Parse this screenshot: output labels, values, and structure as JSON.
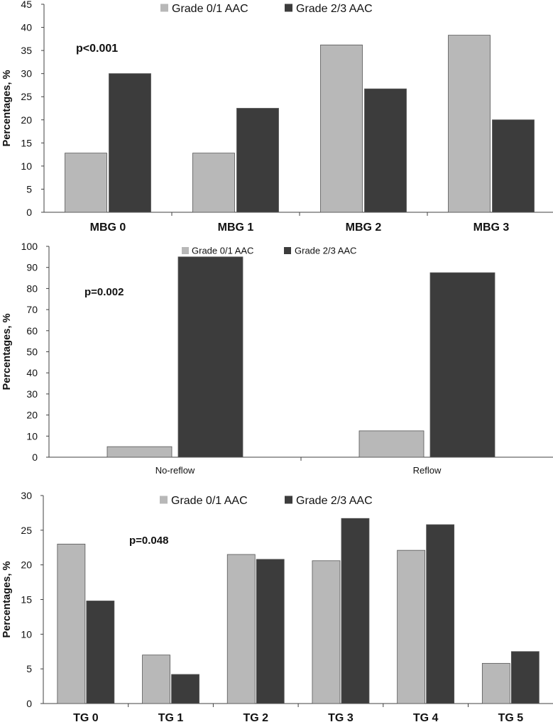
{
  "colors": {
    "series_light": "#b8b8b8",
    "series_dark": "#3c3c3c",
    "axis": "#404040",
    "text": "#111111"
  },
  "chart_data": [
    {
      "type": "bar",
      "title": "",
      "xlabel": "",
      "ylabel": "Percentages, %",
      "ylim": [
        0,
        45
      ],
      "yticks": [
        0,
        5,
        10,
        15,
        20,
        25,
        30,
        35,
        40,
        45
      ],
      "categories": [
        "MBG 0",
        "MBG 1",
        "MBG 2",
        "MBG 3"
      ],
      "series": [
        {
          "name": "Grade 0/1 AAC",
          "values": [
            12.8,
            12.8,
            36.2,
            38.3
          ]
        },
        {
          "name": "Grade 2/3 AAC",
          "values": [
            30.0,
            22.5,
            26.7,
            20.0
          ]
        }
      ],
      "annotation": "p<0.001",
      "legend": "top-center",
      "grid": false
    },
    {
      "type": "bar",
      "title": "",
      "xlabel": "",
      "ylabel": "Percentages, %",
      "ylim": [
        0,
        100
      ],
      "yticks": [
        0,
        10,
        20,
        30,
        40,
        50,
        60,
        70,
        80,
        90,
        100
      ],
      "categories": [
        "No-reflow",
        "Reflow"
      ],
      "series": [
        {
          "name": "Grade 0/1 AAC",
          "values": [
            5.0,
            12.5
          ]
        },
        {
          "name": "Grade 2/3 AAC",
          "values": [
            95.0,
            87.5
          ]
        }
      ],
      "annotation": "p=0.002",
      "legend": "top-center",
      "grid": false
    },
    {
      "type": "bar",
      "title": "",
      "xlabel": "",
      "ylabel": "Percentages, %",
      "ylim": [
        0,
        30
      ],
      "yticks": [
        0,
        5,
        10,
        15,
        20,
        25,
        30
      ],
      "categories": [
        "TG 0",
        "TG 1",
        "TG 2",
        "TG 3",
        "TG 4",
        "TG 5"
      ],
      "series": [
        {
          "name": "Grade 0/1 AAC",
          "values": [
            23.0,
            7.0,
            21.5,
            20.6,
            22.1,
            5.8
          ]
        },
        {
          "name": "Grade 2/3 AAC",
          "values": [
            14.8,
            4.2,
            20.8,
            26.7,
            25.8,
            7.5
          ]
        }
      ],
      "annotation": "p=0.048",
      "legend": "top-center",
      "grid": false
    }
  ]
}
